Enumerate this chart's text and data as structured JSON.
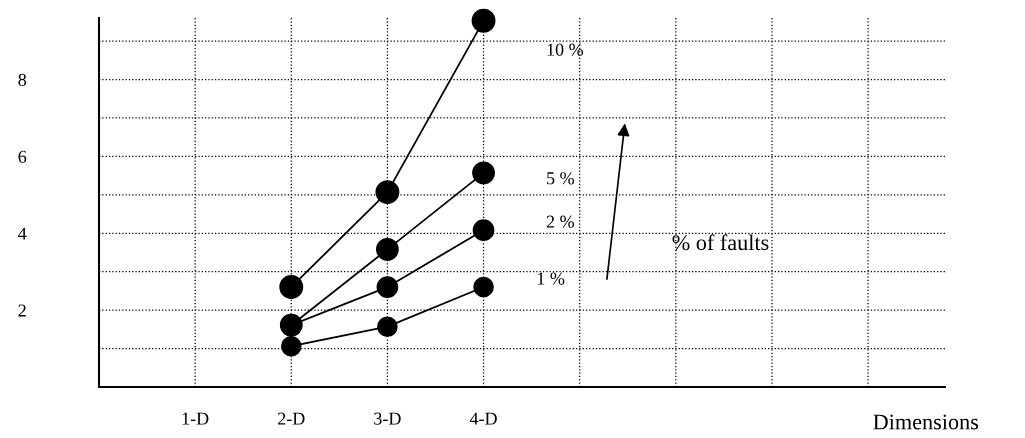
{
  "chart_data": {
    "type": "line",
    "xlabel": "Dimensions",
    "x": [
      2,
      3,
      4
    ],
    "series": [
      {
        "name": "10 %",
        "color": "#000000",
        "values": [
          2.6,
          5.07,
          9.53
        ]
      },
      {
        "name": "5 %",
        "color": "#000000",
        "values": [
          1.61,
          3.58,
          5.57
        ]
      },
      {
        "name": "2 %",
        "color": "#000000",
        "values": [
          1.61,
          2.6,
          4.08
        ]
      },
      {
        "name": "1 %",
        "color": "#000000",
        "values": [
          1.06,
          1.57,
          2.6
        ]
      }
    ],
    "xlim": [
      0,
      8.8
    ],
    "xticks": [
      {
        "value": 1,
        "label": "1-D"
      },
      {
        "value": 2,
        "label": "2-D"
      },
      {
        "value": 3,
        "label": "3-D"
      },
      {
        "value": 4,
        "label": "4-D"
      },
      {
        "value": 5,
        "label": null
      },
      {
        "value": 6,
        "label": null
      },
      {
        "value": 7,
        "label": null
      },
      {
        "value": 8,
        "label": null
      }
    ],
    "ylim": [
      0,
      9.6
    ],
    "yticks": [
      {
        "value": 1,
        "label": null
      },
      2,
      {
        "value": 3,
        "label": null
      },
      4,
      {
        "value": 5,
        "label": null
      },
      6,
      {
        "value": 7,
        "label": null
      },
      8,
      {
        "value": 9,
        "label": null
      }
    ],
    "annotations": [
      "% of faults"
    ],
    "grid": true,
    "legend": false,
    "marker": "circle",
    "line_style": "solid"
  }
}
